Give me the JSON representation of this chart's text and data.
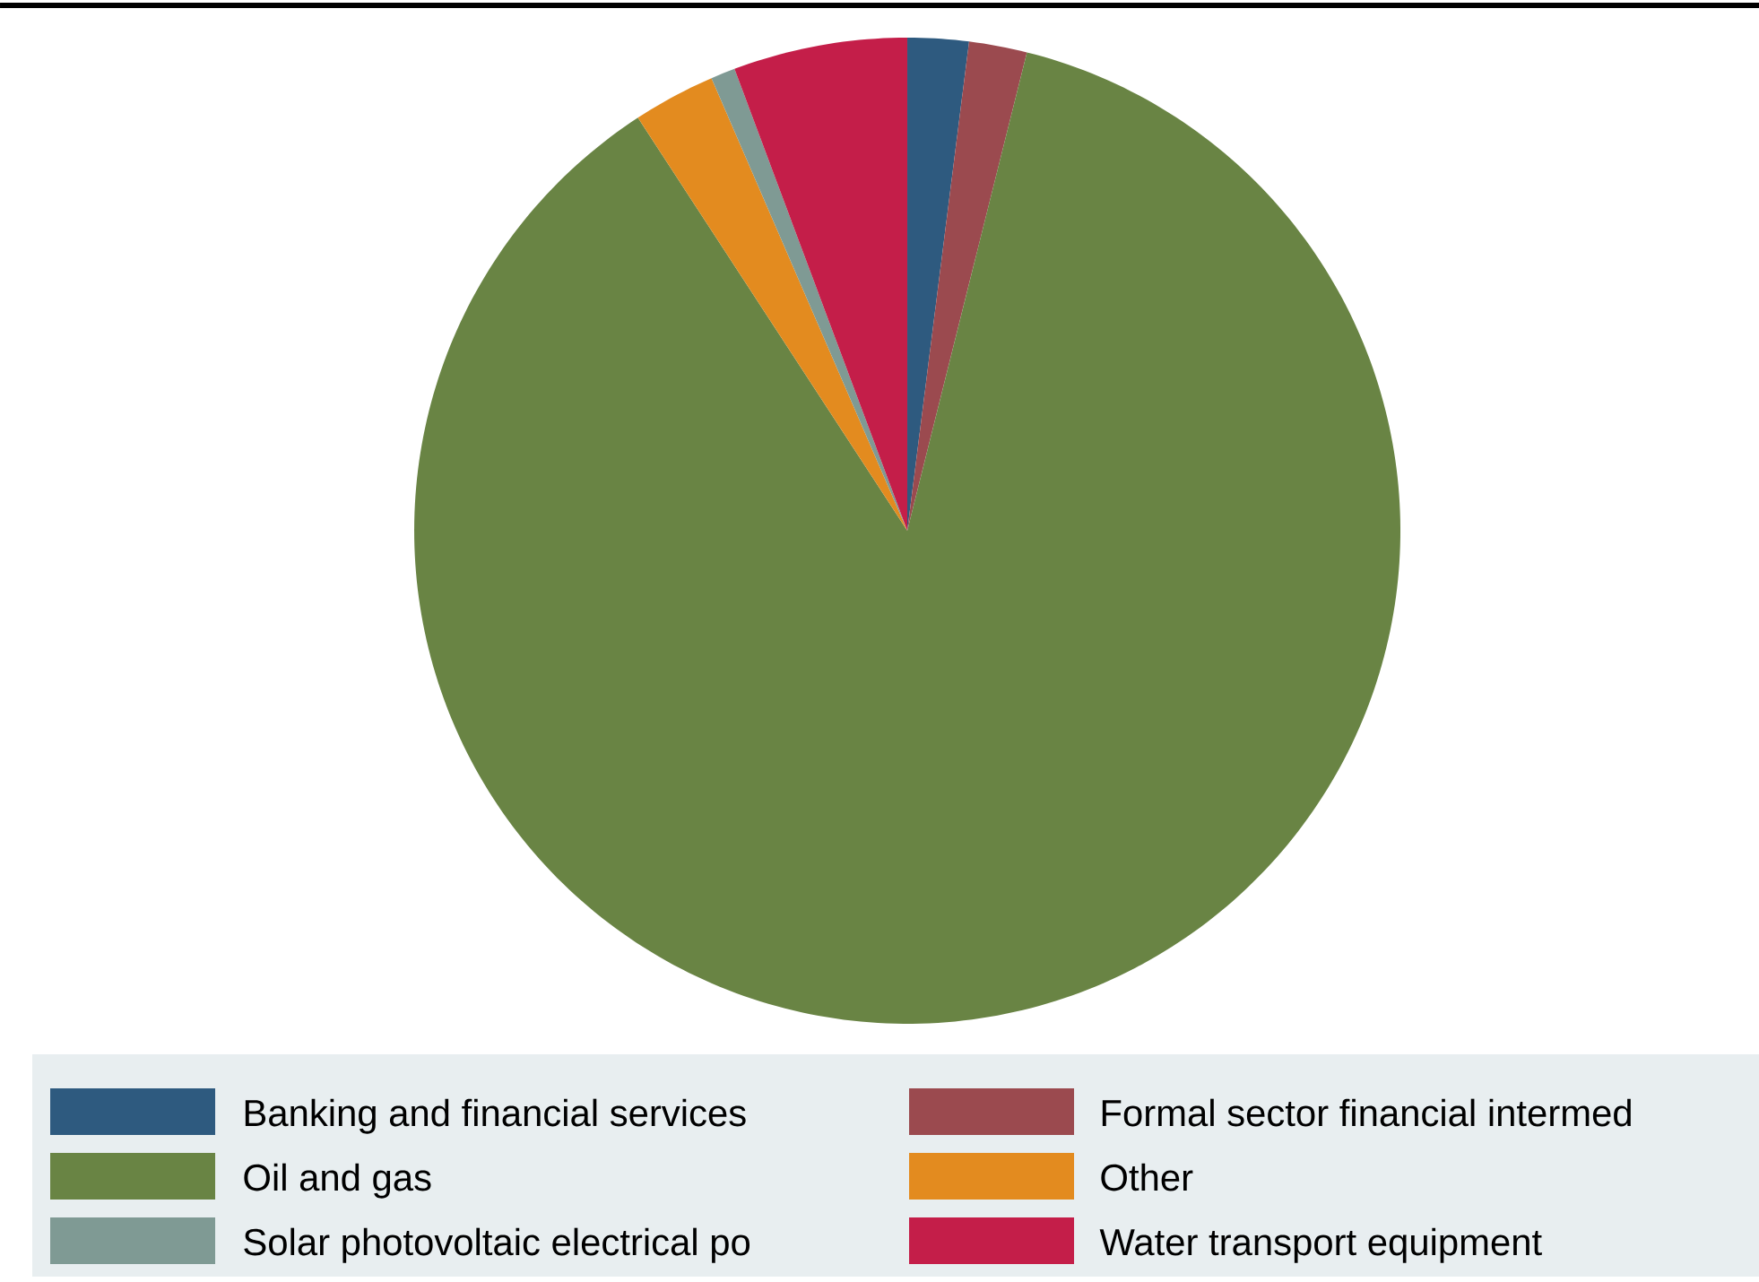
{
  "chart_data": {
    "type": "pie",
    "categories": [
      "Banking and financial services",
      "Formal sector financial intermed",
      "Oil and gas",
      "Other",
      "Solar photovoltaic electrical po",
      "Water transport equipment"
    ],
    "values": [
      2.0,
      1.9,
      86.9,
      2.7,
      0.8,
      5.7
    ],
    "colors": [
      "#2e5a7f",
      "#9b4a4f",
      "#698444",
      "#e38b1f",
      "#7f9a94",
      "#c41e49"
    ],
    "legend": "bottom"
  }
}
